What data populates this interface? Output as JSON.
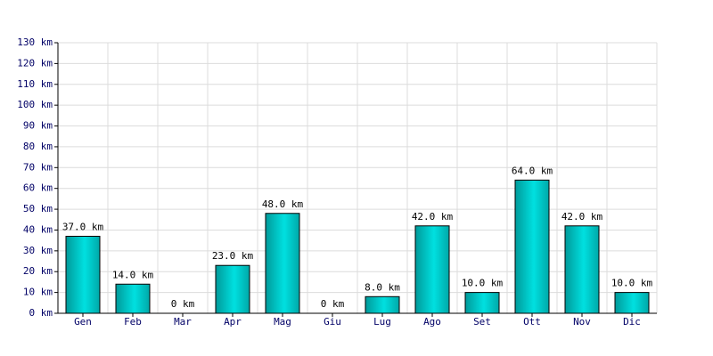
{
  "chart_data": {
    "type": "bar",
    "categories": [
      "Gen",
      "Feb",
      "Mar",
      "Apr",
      "Mag",
      "Giu",
      "Lug",
      "Ago",
      "Set",
      "Ott",
      "Nov",
      "Dic"
    ],
    "values": [
      37,
      14,
      0,
      23,
      48,
      0,
      8,
      42,
      10,
      64,
      42,
      10
    ],
    "value_labels": [
      "37.0 km",
      "14.0 km",
      "0 km",
      "23.0 km",
      "48.0 km",
      "0 km",
      "8.0 km",
      "42.0 km",
      "10.0 km",
      "64.0 km",
      "42.0 km",
      "10.0 km"
    ],
    "color": "#00e0e0",
    "ylim": [
      0,
      130
    ],
    "yticks": [
      {
        "value": 0,
        "label": "0 km"
      },
      {
        "value": 10,
        "label": "10 km"
      },
      {
        "value": 20,
        "label": "20 km"
      },
      {
        "value": 30,
        "label": "30 km"
      },
      {
        "value": 40,
        "label": "40 km"
      },
      {
        "value": 50,
        "label": "50 km"
      },
      {
        "value": 60,
        "label": "60 km"
      },
      {
        "value": 70,
        "label": "70 km"
      },
      {
        "value": 80,
        "label": "80 km"
      },
      {
        "value": 90,
        "label": "90 km"
      },
      {
        "value": 100,
        "label": "100 km"
      },
      {
        "value": 110,
        "label": "110 km"
      },
      {
        "value": 120,
        "label": "120 km"
      },
      {
        "value": 130,
        "label": "130 km"
      }
    ],
    "grid": true
  }
}
